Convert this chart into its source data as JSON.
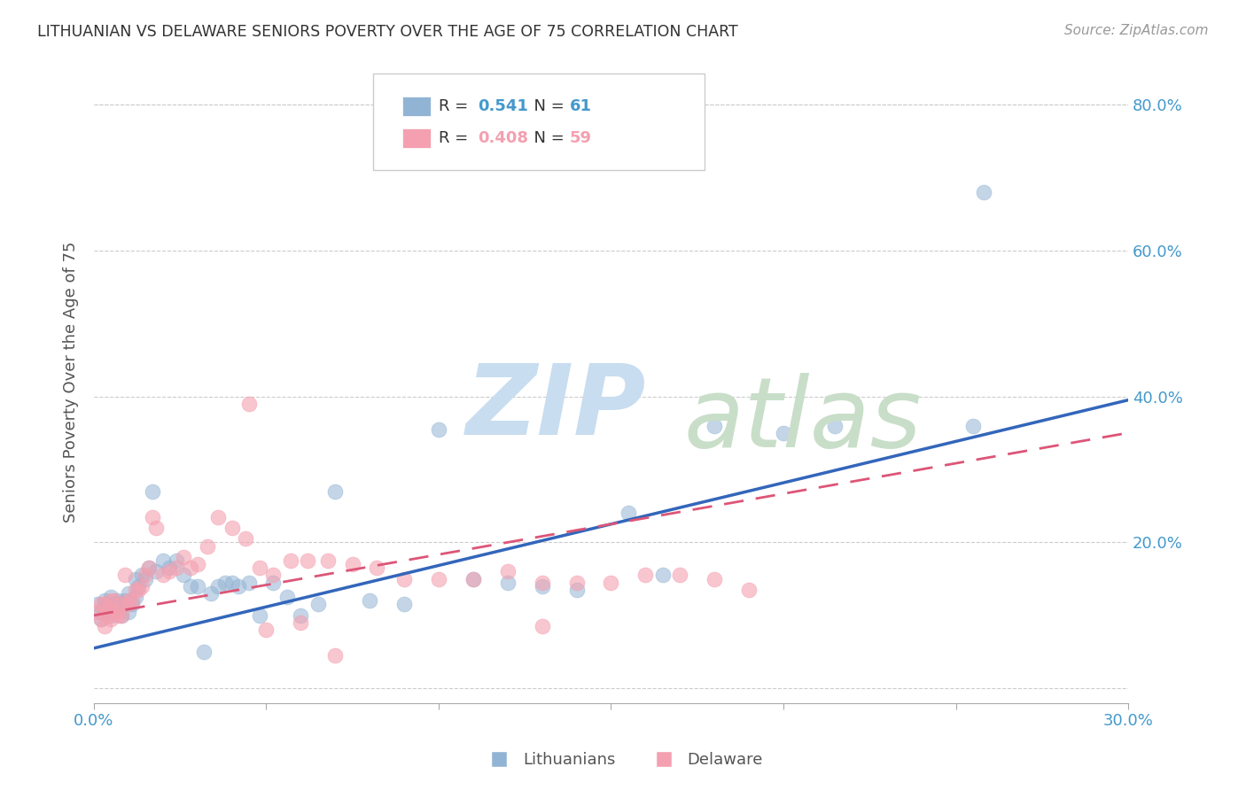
{
  "title": "LITHUANIAN VS DELAWARE SENIORS POVERTY OVER THE AGE OF 75 CORRELATION CHART",
  "source": "Source: ZipAtlas.com",
  "ylabel": "Seniors Poverty Over the Age of 75",
  "xlim": [
    0.0,
    0.3
  ],
  "ylim": [
    -0.02,
    0.86
  ],
  "yticks_right": [
    0.0,
    0.2,
    0.4,
    0.6,
    0.8
  ],
  "ytick_labels_right": [
    "",
    "20.0%",
    "40.0%",
    "60.0%",
    "80.0%"
  ],
  "xticks": [
    0.0,
    0.05,
    0.1,
    0.15,
    0.2,
    0.25,
    0.3
  ],
  "xtick_labels": [
    "0.0%",
    "",
    "",
    "",
    "",
    "",
    "30.0%"
  ],
  "legend_R1": "R =  0.541",
  "legend_N1": "N =  61",
  "legend_R2": "R =  0.408",
  "legend_N2": "N =  59",
  "blue_color": "#92B4D4",
  "pink_color": "#F4A0B0",
  "blue_line_color": "#3366BB",
  "pink_line_color": "#DD5577",
  "axis_color": "#4499CC",
  "background_color": "#FFFFFF",
  "grid_color": "#CCCCCC",
  "lit_x": [
    0.001,
    0.002,
    0.002,
    0.003,
    0.003,
    0.004,
    0.004,
    0.005,
    0.005,
    0.006,
    0.006,
    0.007,
    0.007,
    0.008,
    0.008,
    0.009,
    0.009,
    0.01,
    0.01,
    0.011,
    0.012,
    0.012,
    0.013,
    0.014,
    0.015,
    0.016,
    0.017,
    0.018,
    0.02,
    0.022,
    0.024,
    0.026,
    0.028,
    0.03,
    0.032,
    0.034,
    0.036,
    0.038,
    0.04,
    0.042,
    0.045,
    0.048,
    0.052,
    0.056,
    0.06,
    0.065,
    0.07,
    0.08,
    0.09,
    0.1,
    0.11,
    0.12,
    0.13,
    0.14,
    0.155,
    0.165,
    0.18,
    0.2,
    0.215,
    0.255,
    0.258
  ],
  "lit_y": [
    0.115,
    0.095,
    0.105,
    0.11,
    0.12,
    0.105,
    0.115,
    0.1,
    0.125,
    0.11,
    0.115,
    0.115,
    0.12,
    0.1,
    0.115,
    0.12,
    0.115,
    0.105,
    0.13,
    0.115,
    0.125,
    0.15,
    0.14,
    0.155,
    0.15,
    0.165,
    0.27,
    0.16,
    0.175,
    0.165,
    0.175,
    0.155,
    0.14,
    0.14,
    0.05,
    0.13,
    0.14,
    0.145,
    0.145,
    0.14,
    0.145,
    0.1,
    0.145,
    0.125,
    0.1,
    0.115,
    0.27,
    0.12,
    0.115,
    0.355,
    0.15,
    0.145,
    0.14,
    0.135,
    0.24,
    0.155,
    0.36,
    0.35,
    0.36,
    0.36,
    0.68
  ],
  "del_x": [
    0.001,
    0.002,
    0.002,
    0.003,
    0.003,
    0.004,
    0.004,
    0.005,
    0.005,
    0.006,
    0.006,
    0.007,
    0.007,
    0.008,
    0.008,
    0.009,
    0.01,
    0.01,
    0.011,
    0.012,
    0.013,
    0.014,
    0.015,
    0.016,
    0.017,
    0.018,
    0.02,
    0.022,
    0.024,
    0.026,
    0.028,
    0.03,
    0.033,
    0.036,
    0.04,
    0.044,
    0.048,
    0.052,
    0.057,
    0.062,
    0.068,
    0.075,
    0.082,
    0.09,
    0.1,
    0.11,
    0.12,
    0.13,
    0.14,
    0.15,
    0.16,
    0.17,
    0.18,
    0.19,
    0.13,
    0.045,
    0.05,
    0.06,
    0.07
  ],
  "del_y": [
    0.105,
    0.115,
    0.095,
    0.085,
    0.115,
    0.1,
    0.11,
    0.095,
    0.12,
    0.105,
    0.12,
    0.1,
    0.105,
    0.1,
    0.115,
    0.155,
    0.12,
    0.115,
    0.12,
    0.135,
    0.135,
    0.14,
    0.155,
    0.165,
    0.235,
    0.22,
    0.155,
    0.16,
    0.165,
    0.18,
    0.165,
    0.17,
    0.195,
    0.235,
    0.22,
    0.205,
    0.165,
    0.155,
    0.175,
    0.175,
    0.175,
    0.17,
    0.165,
    0.15,
    0.15,
    0.15,
    0.16,
    0.145,
    0.145,
    0.145,
    0.155,
    0.155,
    0.15,
    0.135,
    0.085,
    0.39,
    0.08,
    0.09,
    0.045
  ],
  "blue_line_x": [
    0.0,
    0.3
  ],
  "blue_line_y": [
    0.055,
    0.395
  ],
  "pink_line_x": [
    0.0,
    0.3
  ],
  "pink_line_y": [
    0.1,
    0.35
  ]
}
